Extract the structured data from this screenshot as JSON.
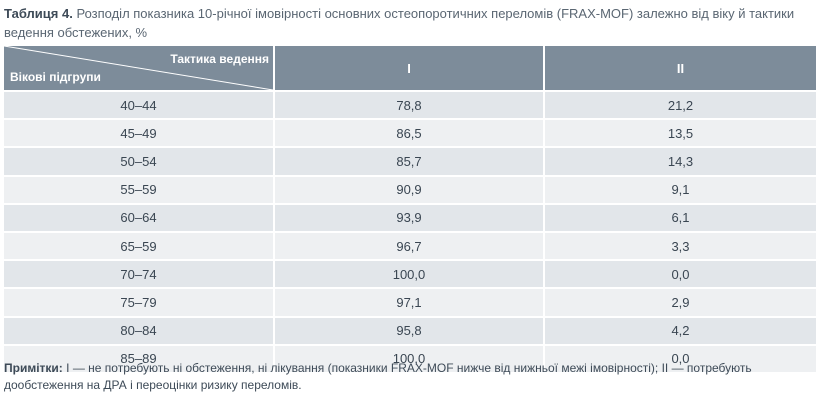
{
  "caption": {
    "label": "Таблиця 4.",
    "title": "Розподіл показника 10-річної імовірності основних остеопоротичних переломів (FRAX-MOF) залежно від віку й тактики ведення обстежених, %"
  },
  "table": {
    "corner_top": "Тактика ведення",
    "corner_bottom": "Вікові підгрупи",
    "columns": [
      "I",
      "II"
    ],
    "rows": [
      {
        "age": "40–44",
        "i": "78,8",
        "ii": "21,2"
      },
      {
        "age": "45–49",
        "i": "86,5",
        "ii": "13,5"
      },
      {
        "age": "50–54",
        "i": "85,7",
        "ii": "14,3"
      },
      {
        "age": "55–59",
        "i": "90,9",
        "ii": "9,1"
      },
      {
        "age": "60–64",
        "i": "93,9",
        "ii": "6,1"
      },
      {
        "age": "65–59",
        "i": "96,7",
        "ii": "3,3"
      },
      {
        "age": "70–74",
        "i": "100,0",
        "ii": "0,0"
      },
      {
        "age": "75–79",
        "i": "97,1",
        "ii": "2,9"
      },
      {
        "age": "80–84",
        "i": "95,8",
        "ii": "4,2"
      },
      {
        "age": "85–89",
        "i": "100,0",
        "ii": "0,0"
      }
    ]
  },
  "notes": {
    "label": "Примітки:",
    "text": "I — не потребують ні обстеження, ні лікування (показники FRAX-MOF нижче від нижньої межі імовірності); II — потребують дообстеження на ДРА і переоцінки ризику переломів."
  },
  "colors": {
    "header_bg": "#7d8c9a",
    "row_odd": "#e2e6ea",
    "row_even": "#eef0f2"
  }
}
